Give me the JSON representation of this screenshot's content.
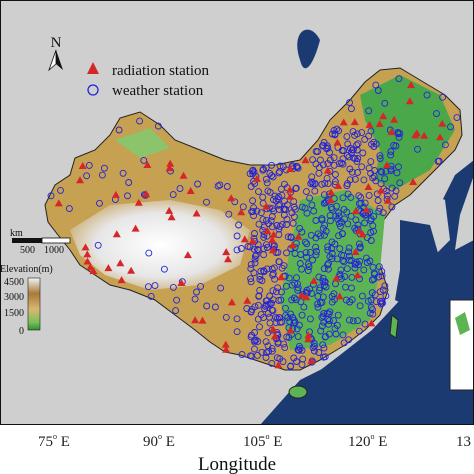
{
  "map": {
    "north_label": "N",
    "legend": {
      "radiation_label": "radiation station",
      "weather_label": "weather station",
      "radiation_color": "#d62728",
      "weather_color": "#2424d8"
    },
    "scalebar": {
      "unit": "km",
      "labels": [
        "500",
        "1000"
      ]
    },
    "colorbar": {
      "title": "Elevation(m)",
      "ticks": [
        "4500",
        "3000",
        "1500",
        "0"
      ]
    },
    "x_ticks": [
      {
        "deg": "75",
        "suffix": "E"
      },
      {
        "deg": "90",
        "suffix": "E"
      },
      {
        "deg": "105",
        "suffix": "E"
      },
      {
        "deg": "120",
        "suffix": "E"
      },
      {
        "deg": "13",
        "suffix": ""
      }
    ],
    "xlabel": "Longitude",
    "colors": {
      "ocean": "#1c3a72",
      "land_outside": "#cfcfcf",
      "lowland": "#3f9f3a",
      "plateau": "#c19a48",
      "high": "#f1f1f1"
    }
  }
}
